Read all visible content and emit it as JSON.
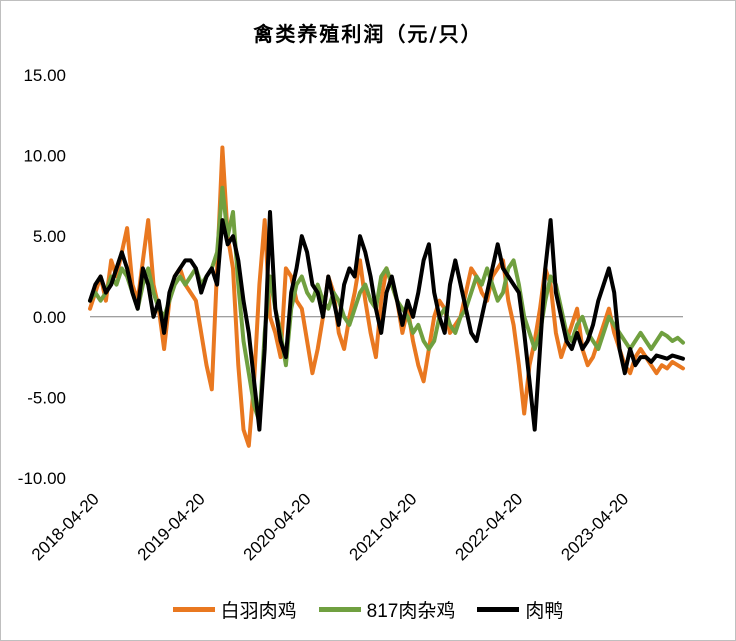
{
  "chart_data": {
    "type": "line",
    "title": "禽类养殖利润（元/只）",
    "xlabel": "",
    "ylabel": "",
    "ylim": [
      -10,
      15
    ],
    "y_ticks": [
      "15.00",
      "10.00",
      "5.00",
      "0.00",
      "-5.00",
      "-10.00"
    ],
    "y_tick_values": [
      15,
      10,
      5,
      0,
      -5,
      -10
    ],
    "x_ticks": [
      "2018-04-20",
      "2019-04-20",
      "2020-04-20",
      "2021-04-20",
      "2022-04-20",
      "2023-04-20"
    ],
    "x_tick_values": [
      2018.3,
      2019.3,
      2020.3,
      2021.3,
      2022.3,
      2023.3
    ],
    "xlim": [
      2018.3,
      2023.9
    ],
    "legend_position": "bottom",
    "grid": false,
    "series": [
      {
        "name": "白羽肉鸡",
        "color": "#E97820",
        "x": [
          2018.3,
          2018.35,
          2018.4,
          2018.45,
          2018.5,
          2018.55,
          2018.6,
          2018.65,
          2018.7,
          2018.75,
          2018.8,
          2018.85,
          2018.9,
          2018.95,
          2019.0,
          2019.05,
          2019.1,
          2019.15,
          2019.2,
          2019.25,
          2019.3,
          2019.35,
          2019.4,
          2019.45,
          2019.5,
          2019.55,
          2019.6,
          2019.65,
          2019.7,
          2019.75,
          2019.8,
          2019.85,
          2019.9,
          2019.95,
          2020.0,
          2020.05,
          2020.1,
          2020.15,
          2020.2,
          2020.25,
          2020.3,
          2020.35,
          2020.4,
          2020.45,
          2020.5,
          2020.55,
          2020.6,
          2020.65,
          2020.7,
          2020.75,
          2020.8,
          2020.85,
          2020.9,
          2020.95,
          2021.0,
          2021.05,
          2021.1,
          2021.15,
          2021.2,
          2021.25,
          2021.3,
          2021.35,
          2021.4,
          2021.45,
          2021.5,
          2021.55,
          2021.6,
          2021.65,
          2021.7,
          2021.75,
          2021.8,
          2021.85,
          2021.9,
          2021.95,
          2022.0,
          2022.05,
          2022.1,
          2022.15,
          2022.2,
          2022.25,
          2022.3,
          2022.35,
          2022.4,
          2022.45,
          2022.5,
          2022.55,
          2022.6,
          2022.65,
          2022.7,
          2022.75,
          2022.8,
          2022.85,
          2022.9,
          2022.95,
          2023.0,
          2023.05,
          2023.1,
          2023.15,
          2023.2,
          2023.25,
          2023.3,
          2023.35,
          2023.4,
          2023.45,
          2023.5,
          2023.55,
          2023.6,
          2023.65,
          2023.7,
          2023.75,
          2023.8,
          2023.85,
          2023.9
        ],
        "values": [
          0.5,
          1.5,
          2.5,
          1.0,
          3.5,
          2.5,
          4.0,
          5.5,
          2.0,
          1.0,
          3.5,
          6.0,
          2.0,
          0.5,
          -2.0,
          1.0,
          2.5,
          3.0,
          2.0,
          1.5,
          1.0,
          -1.0,
          -3.0,
          -4.5,
          3.0,
          10.5,
          5.0,
          3.0,
          -3.0,
          -7.0,
          -8.0,
          -4.0,
          2.0,
          6.0,
          0.0,
          -1.0,
          -2.5,
          3.0,
          2.5,
          1.0,
          0.5,
          -1.5,
          -3.5,
          -2.0,
          0.0,
          2.5,
          1.5,
          -1.0,
          -2.0,
          0.0,
          1.5,
          3.5,
          1.0,
          -1.0,
          -2.5,
          1.0,
          3.0,
          2.0,
          1.0,
          -1.0,
          0.5,
          -1.5,
          -3.0,
          -4.0,
          -2.0,
          0.0,
          1.0,
          0.5,
          -1.0,
          -0.5,
          0.0,
          1.5,
          3.0,
          2.5,
          1.5,
          1.0,
          2.5,
          3.0,
          3.5,
          1.0,
          -0.5,
          -3.0,
          -6.0,
          -3.0,
          -1.5,
          0.5,
          3.0,
          2.0,
          -1.0,
          -2.5,
          -1.5,
          -0.5,
          0.5,
          -2.0,
          -3.0,
          -2.5,
          -1.5,
          -0.5,
          0.5,
          -1.0,
          -2.0,
          -3.0,
          -3.5,
          -2.5,
          -2.0,
          -2.5,
          -3.0,
          -3.5,
          -3.0,
          -3.2,
          -2.8,
          -3.0,
          -3.2
        ],
        "values_note": ""
      },
      {
        "name": "817肉杂鸡",
        "color": "#70A040",
        "x": [
          2018.3,
          2018.35,
          2018.4,
          2018.45,
          2018.5,
          2018.55,
          2018.6,
          2018.65,
          2018.7,
          2018.75,
          2018.8,
          2018.85,
          2018.9,
          2018.95,
          2019.0,
          2019.05,
          2019.1,
          2019.15,
          2019.2,
          2019.25,
          2019.3,
          2019.35,
          2019.4,
          2019.45,
          2019.5,
          2019.55,
          2019.6,
          2019.65,
          2019.7,
          2019.75,
          2019.8,
          2019.85,
          2019.9,
          2019.95,
          2020.0,
          2020.05,
          2020.1,
          2020.15,
          2020.2,
          2020.25,
          2020.3,
          2020.35,
          2020.4,
          2020.45,
          2020.5,
          2020.55,
          2020.6,
          2020.65,
          2020.7,
          2020.75,
          2020.8,
          2020.85,
          2020.9,
          2020.95,
          2021.0,
          2021.05,
          2021.1,
          2021.15,
          2021.2,
          2021.25,
          2021.3,
          2021.35,
          2021.4,
          2021.45,
          2021.5,
          2021.55,
          2021.6,
          2021.65,
          2021.7,
          2021.75,
          2021.8,
          2021.85,
          2021.9,
          2021.95,
          2022.0,
          2022.05,
          2022.1,
          2022.15,
          2022.2,
          2022.25,
          2022.3,
          2022.35,
          2022.4,
          2022.45,
          2022.5,
          2022.55,
          2022.6,
          2022.65,
          2022.7,
          2022.75,
          2022.8,
          2022.85,
          2022.9,
          2022.95,
          2023.0,
          2023.05,
          2023.1,
          2023.15,
          2023.2,
          2023.25,
          2023.3,
          2023.35,
          2023.4,
          2023.45,
          2023.5,
          2023.55,
          2023.6,
          2023.65,
          2023.7,
          2023.75,
          2023.8,
          2023.85,
          2023.9
        ],
        "values": [
          1.0,
          1.5,
          1.0,
          1.5,
          2.5,
          2.0,
          3.0,
          2.5,
          1.5,
          0.5,
          2.0,
          3.0,
          1.5,
          0.5,
          0.0,
          1.0,
          2.0,
          2.5,
          2.0,
          2.5,
          3.0,
          2.0,
          2.5,
          3.0,
          4.0,
          8.0,
          5.0,
          6.5,
          2.0,
          -1.5,
          -3.5,
          -5.5,
          -6.5,
          -1.0,
          2.5,
          0.5,
          -1.0,
          -3.0,
          0.5,
          2.0,
          2.5,
          1.5,
          1.0,
          2.0,
          1.0,
          0.5,
          1.5,
          1.0,
          0.0,
          -0.5,
          0.5,
          1.5,
          2.0,
          1.0,
          0.5,
          2.5,
          3.0,
          2.0,
          1.0,
          0.5,
          0.0,
          -1.0,
          -0.5,
          -1.5,
          -2.0,
          -1.5,
          0.0,
          0.5,
          -0.5,
          -1.0,
          0.0,
          0.5,
          1.5,
          2.5,
          2.0,
          3.0,
          2.0,
          1.0,
          1.5,
          3.0,
          3.5,
          2.0,
          0.0,
          -1.0,
          -2.0,
          -1.0,
          1.0,
          2.5,
          2.0,
          0.5,
          -1.0,
          -1.5,
          -0.5,
          0.0,
          -1.0,
          -1.5,
          -2.0,
          -1.0,
          0.0,
          -0.5,
          -1.0,
          -1.5,
          -2.0,
          -1.5,
          -1.0,
          -1.5,
          -2.0,
          -1.5,
          -1.0,
          -1.2,
          -1.5,
          -1.3,
          -1.6
        ],
        "values_note": ""
      },
      {
        "name": "肉鸭",
        "color": "#000000",
        "x": [
          2018.3,
          2018.35,
          2018.4,
          2018.45,
          2018.5,
          2018.55,
          2018.6,
          2018.65,
          2018.7,
          2018.75,
          2018.8,
          2018.85,
          2018.9,
          2018.95,
          2019.0,
          2019.05,
          2019.1,
          2019.15,
          2019.2,
          2019.25,
          2019.3,
          2019.35,
          2019.4,
          2019.45,
          2019.5,
          2019.55,
          2019.6,
          2019.65,
          2019.7,
          2019.75,
          2019.8,
          2019.85,
          2019.9,
          2019.95,
          2020.0,
          2020.05,
          2020.1,
          2020.15,
          2020.2,
          2020.25,
          2020.3,
          2020.35,
          2020.4,
          2020.45,
          2020.5,
          2020.55,
          2020.6,
          2020.65,
          2020.7,
          2020.75,
          2020.8,
          2020.85,
          2020.9,
          2020.95,
          2021.0,
          2021.05,
          2021.1,
          2021.15,
          2021.2,
          2021.25,
          2021.3,
          2021.35,
          2021.4,
          2021.45,
          2021.5,
          2021.55,
          2021.6,
          2021.65,
          2021.7,
          2021.75,
          2021.8,
          2021.85,
          2021.9,
          2021.95,
          2022.0,
          2022.05,
          2022.1,
          2022.15,
          2022.2,
          2022.25,
          2022.3,
          2022.35,
          2022.4,
          2022.45,
          2022.5,
          2022.55,
          2022.6,
          2022.65,
          2022.7,
          2022.75,
          2022.8,
          2022.85,
          2022.9,
          2022.95,
          2023.0,
          2023.05,
          2023.1,
          2023.15,
          2023.2,
          2023.25,
          2023.3,
          2023.35,
          2023.4,
          2023.45,
          2023.5,
          2023.55,
          2023.6,
          2023.65,
          2023.7,
          2023.75,
          2023.8,
          2023.85,
          2023.9
        ],
        "values": [
          1.0,
          2.0,
          2.5,
          1.5,
          2.0,
          3.0,
          4.0,
          3.0,
          1.5,
          0.5,
          3.0,
          2.0,
          0.0,
          1.0,
          -1.0,
          1.5,
          2.5,
          3.0,
          3.5,
          3.5,
          3.0,
          1.5,
          2.5,
          3.0,
          2.0,
          6.0,
          4.5,
          5.0,
          3.5,
          1.0,
          -1.0,
          -4.0,
          -7.0,
          -2.0,
          6.5,
          0.5,
          -1.5,
          -2.5,
          1.5,
          3.0,
          5.0,
          4.0,
          2.0,
          1.5,
          0.0,
          2.5,
          1.0,
          -0.5,
          2.0,
          3.0,
          2.5,
          5.0,
          4.0,
          2.5,
          0.5,
          -1.0,
          1.5,
          2.5,
          1.0,
          -0.5,
          1.0,
          0.0,
          1.5,
          3.5,
          4.5,
          1.5,
          0.0,
          -1.0,
          2.0,
          3.5,
          2.0,
          0.5,
          -1.0,
          -1.5,
          0.0,
          1.5,
          3.0,
          4.5,
          3.0,
          2.5,
          2.0,
          1.5,
          -1.0,
          -4.0,
          -7.0,
          -2.0,
          3.0,
          6.0,
          1.5,
          0.0,
          -1.5,
          -2.0,
          -1.0,
          -2.0,
          -1.5,
          -0.5,
          1.0,
          2.0,
          3.0,
          1.5,
          -2.0,
          -3.5,
          -2.0,
          -3.0,
          -2.5,
          -2.5,
          -2.8,
          -2.4,
          -2.5,
          -2.6,
          -2.4,
          -2.5,
          -2.6
        ],
        "values_note": ""
      }
    ]
  }
}
